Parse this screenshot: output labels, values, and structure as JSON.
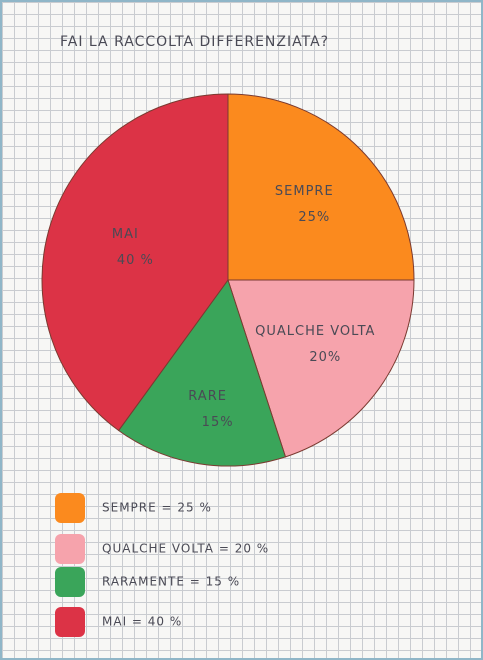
{
  "chart_data": {
    "type": "pie",
    "title": "FAI LA RACCOLTA DIFFERENZIATA?",
    "labels": [
      "SEMPRE",
      "QUALCHE VOLTA",
      "RARE",
      "MAI"
    ],
    "values": [
      25,
      20,
      15,
      40
    ],
    "value_labels": [
      "25%",
      "20%",
      "15%",
      "40 %"
    ],
    "colors": [
      "#fb8a1e",
      "#f6a3ac",
      "#3aa55a",
      "#dc3346"
    ],
    "legend": [
      "SEMPRE = 25 %",
      "QUALCHE VOLTA = 20 %",
      "RARAMENTE = 15 %",
      "MAI = 40 %"
    ]
  }
}
